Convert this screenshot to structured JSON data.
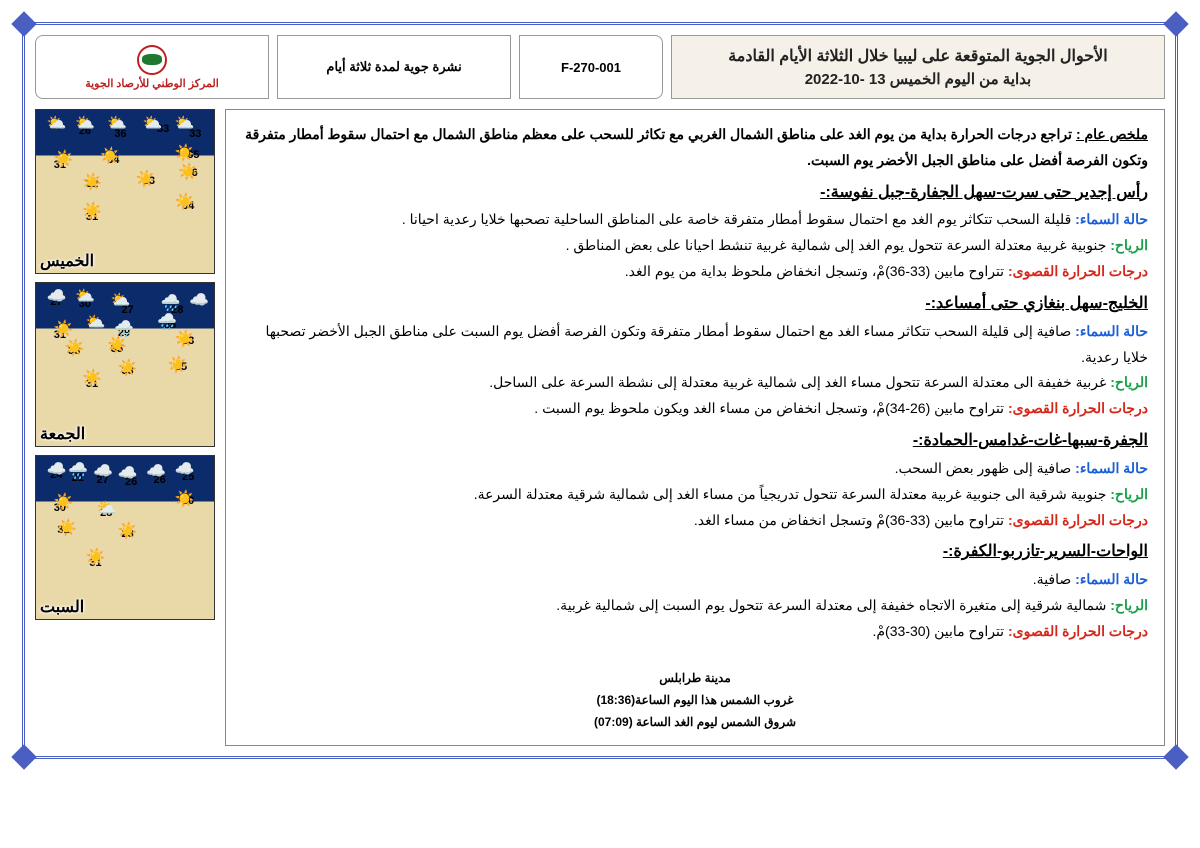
{
  "header": {
    "title_line1": "الأحوال الجوية المتوقعة على ليبيا خلال الثلاثة الأيام القادمة",
    "title_line2": "بداية من اليوم الخميس 13 -10-2022",
    "form_code": "F-270-001",
    "bulletin_type": "نشرة جوية لمدة ثلاثة أيام",
    "org_name": "المركز الوطني للأرصاد الجوية"
  },
  "summary": {
    "label": "ملخص عام :",
    "text": "تراجع درجات الحرارة بداية من يوم الغد على مناطق الشمال الغربي مع تكاثر للسحب على معظم مناطق الشمال مع احتمال سقوط أمطار متفرقة وتكون الفرصة أفضل على مناطق الجبل الأخضر يوم السبت."
  },
  "regions": [
    {
      "title": "رأس إجدير حتى سرت-سهل الجفارة-جبل نفوسة:-",
      "sky": "قليلة السحب تتكاثر يوم الغد مع احتمال سقوط أمطار متفرقة خاصة على المناطق الساحلية تصحبها خلايا رعدية احيانا .",
      "wind": "جنوبية غربية معتدلة السرعة تتحول يوم الغد إلى شمالية غربية تنشط احيانا على بعض المناطق .",
      "temp": "تتراوح مابين (33-36)مْ، وتسجل انخفاض ملحوظ بداية من يوم الغد."
    },
    {
      "title": "الخليج-سهل بنغازي حتى أمساعد:-",
      "sky": "صافية إلى قليلة السحب تتكاثر مساء الغد مع احتمال سقوط أمطار متفرقة وتكون الفرصة أفضل يوم السبت على مناطق الجبل الأخضر تصحبها خلايا رعدية.",
      "wind": "غربية خفيفة الى معتدلة السرعة تتحول مساء الغد إلى شمالية غربية معتدلة إلى نشطة السرعة على الساحل.",
      "temp": "تتراوح مابين (26-34)مْ، وتسجل انخفاض  من مساء الغد ويكون ملحوظ يوم السبت ."
    },
    {
      "title": "الجفرة-سبها-غات-غدامس-الحمادة:-",
      "sky": "صافية إلى ظهور بعض السحب.",
      "wind": "جنوبية شرقية الى جنوبية غربية معتدلة السرعة تتحول تدريجياً من مساء الغد إلى شمالية شرقية معتدلة السرعة.",
      "temp": "تتراوح مابين (33-36)مْ وتسجل انخفاض من مساء الغد."
    },
    {
      "title": "الواحات-السرير-تازربو-الكفرة:-",
      "sky": "صافية.",
      "wind": "شمالية شرقية إلى متغيرة الاتجاه خفيفة إلى معتدلة السرعة تتحول يوم السبت إلى شمالية غربية.",
      "temp": "تتراوح مابين (30-33)مْ."
    }
  ],
  "labels": {
    "sky": "حالة السماء:",
    "wind": "الرياح:",
    "temp": "درجات الحرارة القصوى:"
  },
  "footer": {
    "city": "مدينة طرابلس",
    "sunset": "غروب الشمس هذا اليوم الساعة(18:36)",
    "sunrise": "شروق الشمس ليوم الغد الساعة (07:09)"
  },
  "maps": [
    {
      "day": "الخميس",
      "temps": [
        {
          "v": "27",
          "t": "6%",
          "l": "8%"
        },
        {
          "v": "26",
          "t": "9%",
          "l": "24%"
        },
        {
          "v": "36",
          "t": "11%",
          "l": "44%"
        },
        {
          "v": "33",
          "t": "8%",
          "l": "68%"
        },
        {
          "v": "33",
          "t": "11%",
          "l": "86%"
        },
        {
          "v": "31",
          "t": "30%",
          "l": "10%"
        },
        {
          "v": "34",
          "t": "27%",
          "l": "40%"
        },
        {
          "v": "35",
          "t": "24%",
          "l": "85%"
        },
        {
          "v": "32",
          "t": "42%",
          "l": "28%"
        },
        {
          "v": "33",
          "t": "40%",
          "l": "60%"
        },
        {
          "v": "36",
          "t": "35%",
          "l": "84%"
        },
        {
          "v": "31",
          "t": "62%",
          "l": "28%"
        },
        {
          "v": "34",
          "t": "55%",
          "l": "82%"
        }
      ],
      "icons": [
        {
          "c": "pc",
          "t": "2%",
          "l": "6%"
        },
        {
          "c": "pc",
          "t": "2%",
          "l": "22%"
        },
        {
          "c": "pc",
          "t": "2%",
          "l": "40%"
        },
        {
          "c": "pc",
          "t": "2%",
          "l": "60%"
        },
        {
          "c": "pc",
          "t": "2%",
          "l": "78%"
        },
        {
          "c": "sun",
          "t": "24%",
          "l": "10%"
        },
        {
          "c": "sun",
          "t": "22%",
          "l": "36%"
        },
        {
          "c": "sun",
          "t": "20%",
          "l": "78%"
        },
        {
          "c": "sun",
          "t": "38%",
          "l": "26%"
        },
        {
          "c": "sun",
          "t": "36%",
          "l": "56%"
        },
        {
          "c": "sun",
          "t": "32%",
          "l": "80%"
        },
        {
          "c": "sun",
          "t": "56%",
          "l": "26%"
        },
        {
          "c": "sun",
          "t": "50%",
          "l": "78%"
        }
      ]
    },
    {
      "day": "الجمعة",
      "temps": [
        {
          "v": "27",
          "t": "8%",
          "l": "8%"
        },
        {
          "v": "30",
          "t": "9%",
          "l": "24%"
        },
        {
          "v": "27",
          "t": "13%",
          "l": "48%"
        },
        {
          "v": "28",
          "t": "13%",
          "l": "76%"
        },
        {
          "v": "31",
          "t": "28%",
          "l": "10%"
        },
        {
          "v": "34",
          "t": "22%",
          "l": "30%"
        },
        {
          "v": "29",
          "t": "27%",
          "l": "46%"
        },
        {
          "v": "28",
          "t": "22%",
          "l": "72%"
        },
        {
          "v": "33",
          "t": "38%",
          "l": "18%"
        },
        {
          "v": "35",
          "t": "37%",
          "l": "42%"
        },
        {
          "v": "33",
          "t": "32%",
          "l": "82%"
        },
        {
          "v": "31",
          "t": "58%",
          "l": "28%"
        },
        {
          "v": "33",
          "t": "50%",
          "l": "48%"
        },
        {
          "v": "35",
          "t": "48%",
          "l": "78%"
        }
      ],
      "icons": [
        {
          "c": "cl",
          "t": "2%",
          "l": "6%"
        },
        {
          "c": "pc",
          "t": "2%",
          "l": "22%"
        },
        {
          "c": "pc",
          "t": "4%",
          "l": "42%"
        },
        {
          "c": "rn",
          "t": "6%",
          "l": "70%"
        },
        {
          "c": "cl",
          "t": "4%",
          "l": "86%"
        },
        {
          "c": "sun",
          "t": "22%",
          "l": "10%"
        },
        {
          "c": "pc",
          "t": "18%",
          "l": "28%"
        },
        {
          "c": "rn",
          "t": "22%",
          "l": "44%"
        },
        {
          "c": "rn",
          "t": "18%",
          "l": "68%"
        },
        {
          "c": "sun",
          "t": "34%",
          "l": "16%"
        },
        {
          "c": "sun",
          "t": "32%",
          "l": "40%"
        },
        {
          "c": "sun",
          "t": "28%",
          "l": "78%"
        },
        {
          "c": "sun",
          "t": "52%",
          "l": "26%"
        },
        {
          "c": "sun",
          "t": "46%",
          "l": "46%"
        },
        {
          "c": "sun",
          "t": "44%",
          "l": "74%"
        }
      ]
    },
    {
      "day": "السبت",
      "temps": [
        {
          "v": "24",
          "t": "8%",
          "l": "8%"
        },
        {
          "v": "21",
          "t": "10%",
          "l": "20%"
        },
        {
          "v": "27",
          "t": "11%",
          "l": "34%"
        },
        {
          "v": "26",
          "t": "12%",
          "l": "50%"
        },
        {
          "v": "26",
          "t": "11%",
          "l": "66%"
        },
        {
          "v": "25",
          "t": "9%",
          "l": "82%"
        },
        {
          "v": "30",
          "t": "28%",
          "l": "10%"
        },
        {
          "v": "28",
          "t": "31%",
          "l": "36%"
        },
        {
          "v": "30",
          "t": "24%",
          "l": "82%"
        },
        {
          "v": "31",
          "t": "42%",
          "l": "12%"
        },
        {
          "v": "28",
          "t": "44%",
          "l": "48%"
        },
        {
          "v": "31",
          "t": "62%",
          "l": "30%"
        }
      ],
      "icons": [
        {
          "c": "cl",
          "t": "2%",
          "l": "6%"
        },
        {
          "c": "rn",
          "t": "3%",
          "l": "18%"
        },
        {
          "c": "cl",
          "t": "3%",
          "l": "32%"
        },
        {
          "c": "cl",
          "t": "4%",
          "l": "46%"
        },
        {
          "c": "cl",
          "t": "3%",
          "l": "62%"
        },
        {
          "c": "cl",
          "t": "2%",
          "l": "78%"
        },
        {
          "c": "sun",
          "t": "22%",
          "l": "10%"
        },
        {
          "c": "pc",
          "t": "26%",
          "l": "34%"
        },
        {
          "c": "sun",
          "t": "20%",
          "l": "78%"
        },
        {
          "c": "sun",
          "t": "38%",
          "l": "12%"
        },
        {
          "c": "sun",
          "t": "40%",
          "l": "46%"
        },
        {
          "c": "sun",
          "t": "56%",
          "l": "28%"
        }
      ]
    }
  ],
  "colors": {
    "border": "#4a5fc1",
    "sky": "#1a5fd6",
    "wind": "#1aa04a",
    "temp": "#d6281a",
    "logo": "#b22222"
  }
}
